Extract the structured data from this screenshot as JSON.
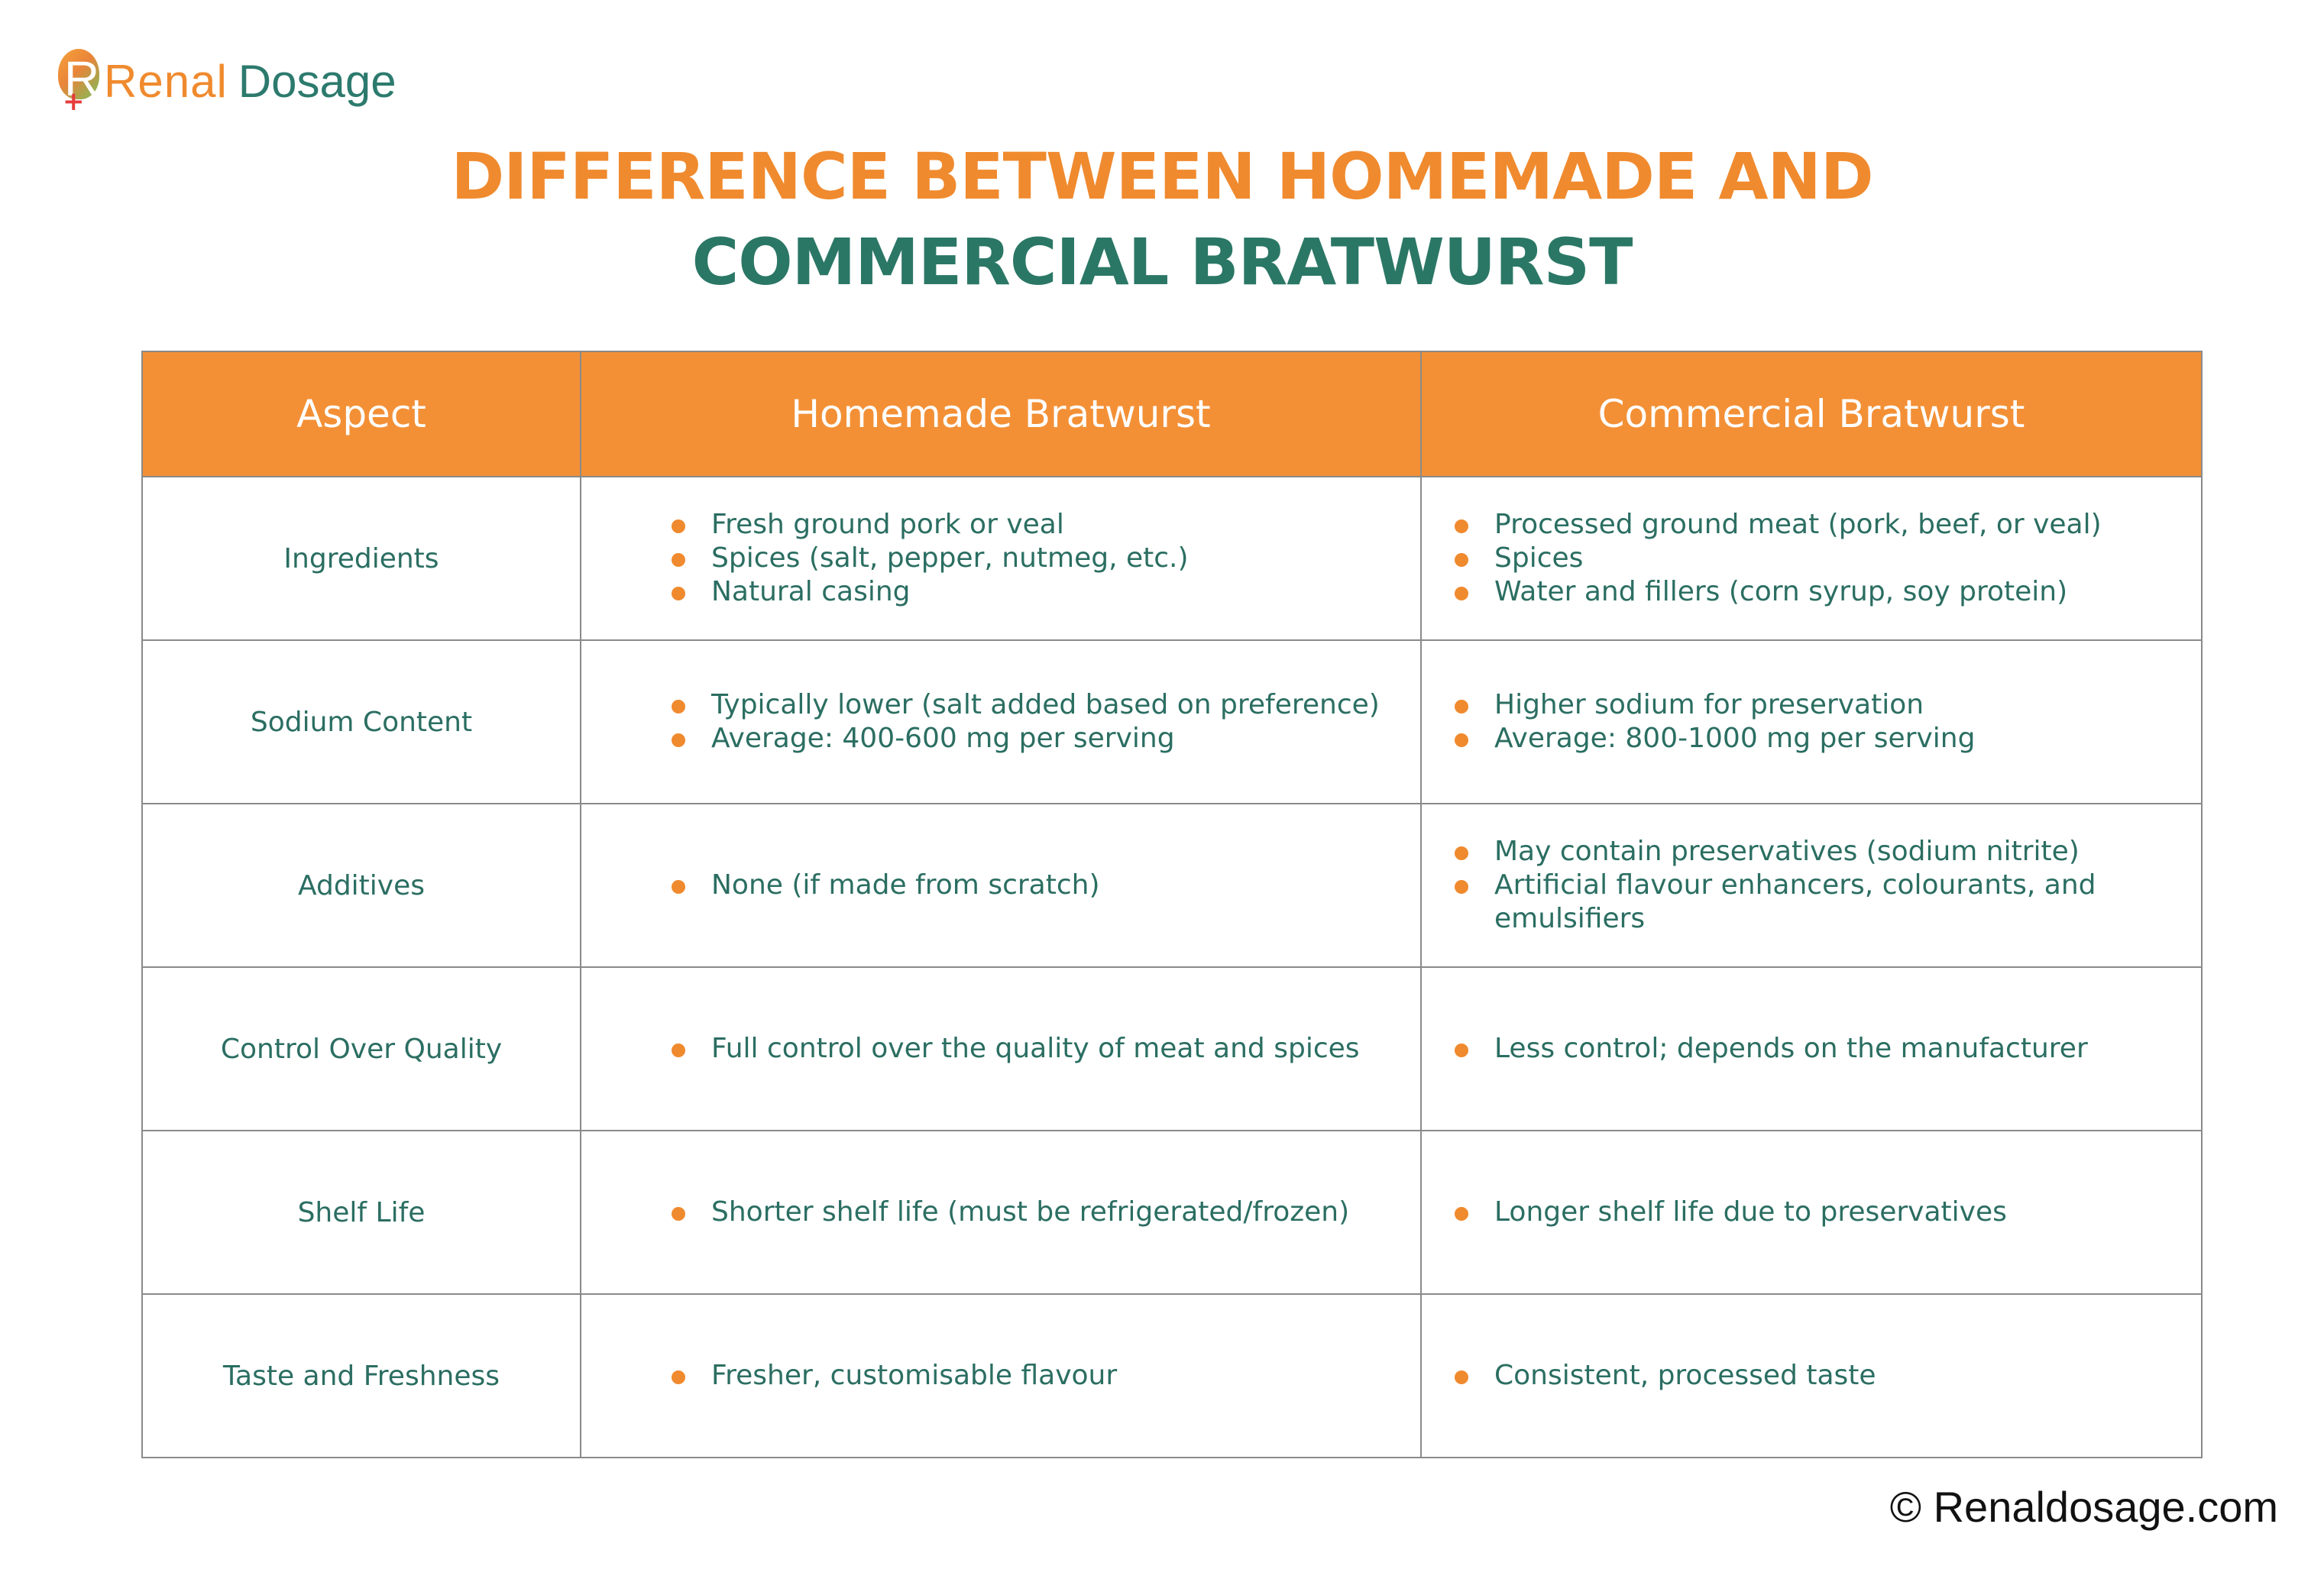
{
  "brand": {
    "part1": "Renal",
    "part2": "Dosage",
    "mark_letter": "R",
    "mark_cross": "+",
    "colors": {
      "orange": "#f08a2e",
      "teal": "#2c7a6d",
      "cross": "#e53b3b"
    }
  },
  "title": {
    "line1": "DIFFERENCE BETWEEN HOMEMADE AND",
    "line2": "COMMERCIAL BRATWURST"
  },
  "table": {
    "headers": [
      "Aspect",
      "Homemade Bratwurst",
      "Commercial Bratwurst"
    ],
    "header_color": "#f39036",
    "rows": [
      {
        "aspect": "Ingredients",
        "homemade": [
          "Fresh ground pork or veal",
          "Spices (salt, pepper, nutmeg, etc.)",
          "Natural casing"
        ],
        "commercial": [
          "Processed ground meat (pork, beef, or veal)",
          "Spices",
          "Water and fillers (corn syrup, soy protein)"
        ]
      },
      {
        "aspect": "Sodium Content",
        "homemade": [
          "Typically lower (salt added based on preference)",
          "Average: 400-600 mg per serving"
        ],
        "commercial": [
          "Higher sodium for preservation",
          "Average: 800-1000 mg per serving"
        ]
      },
      {
        "aspect": "Additives",
        "homemade": [
          "None (if made from scratch)"
        ],
        "commercial": [
          "May contain preservatives (sodium nitrite)",
          "Artificial flavour enhancers, colourants, and emulsifiers"
        ]
      },
      {
        "aspect": "Control Over Quality",
        "homemade": [
          "Full control over the quality of meat and spices"
        ],
        "commercial": [
          "Less control; depends on the manufacturer"
        ]
      },
      {
        "aspect": "Shelf Life",
        "homemade": [
          "Shorter shelf life (must be refrigerated/frozen)"
        ],
        "commercial": [
          "Longer shelf life due to preservatives"
        ]
      },
      {
        "aspect": "Taste and Freshness",
        "homemade": [
          "Fresher, customisable flavour"
        ],
        "commercial": [
          "Consistent, processed taste"
        ]
      }
    ]
  },
  "footer": {
    "copyright": "© Renaldosage.com"
  }
}
